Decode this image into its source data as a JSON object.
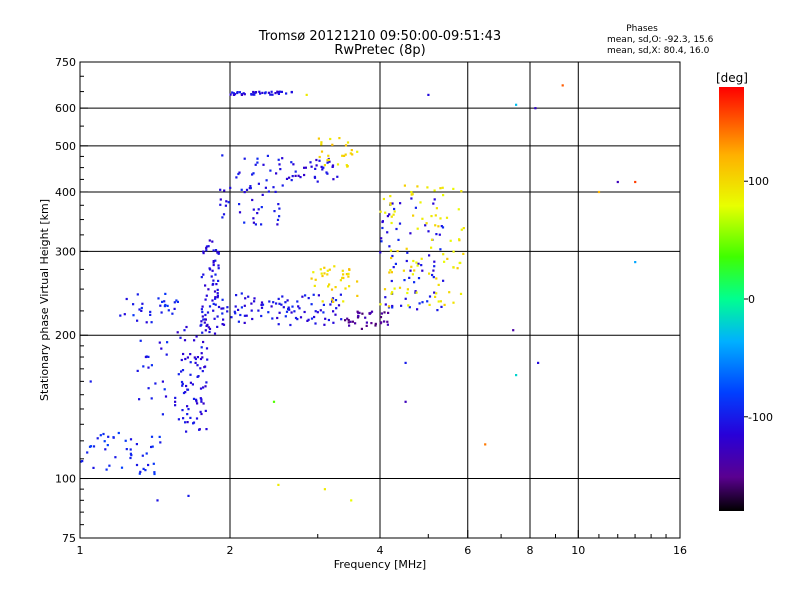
{
  "header": {
    "title": "Tromsø 20121210 09:50:00-09:51:43",
    "subtitle": "RwPretec (8p)"
  },
  "stats": {
    "heading": "Phases",
    "line_o": "mean, sd,O: -92.3, 15.6",
    "line_x": "mean, sd,X:  80.4, 16.0"
  },
  "colorbar": {
    "label": "[deg]",
    "range": [
      -180,
      180
    ],
    "ticks": [
      {
        "value": 100,
        "label": "100"
      },
      {
        "value": 0,
        "label": "0"
      },
      {
        "value": -100,
        "label": "-100"
      }
    ]
  },
  "chart_data": {
    "type": "scatter",
    "title": "Tromsø 20121210 09:50:00-09:51:43",
    "subtitle": "RwPretec (8p)",
    "xlabel": "Frequency [MHz]",
    "ylabel": "Stationary phase Virtual Height [km]",
    "xscale": "log",
    "yscale": "log",
    "xlim": [
      1,
      16
    ],
    "ylim": [
      75,
      750
    ],
    "xticks": [
      {
        "value": 1,
        "label": "1"
      },
      {
        "value": 2,
        "label": "2"
      },
      {
        "value": 4,
        "label": "4"
      },
      {
        "value": 6,
        "label": "6"
      },
      {
        "value": 8,
        "label": "8"
      },
      {
        "value": 10,
        "label": "10"
      },
      {
        "value": 16,
        "label": "16"
      }
    ],
    "yticks": [
      {
        "value": 75,
        "label": "75"
      },
      {
        "value": 100,
        "label": "100"
      },
      {
        "value": 200,
        "label": "200"
      },
      {
        "value": 300,
        "label": "300"
      },
      {
        "value": 400,
        "label": "400"
      },
      {
        "value": 500,
        "label": "500"
      },
      {
        "value": 600,
        "label": "600"
      },
      {
        "value": 750,
        "label": "750"
      }
    ],
    "x_gridlines": [
      2,
      4,
      6,
      8,
      10
    ],
    "y_gridlines": [
      100,
      200,
      300,
      400,
      500,
      600
    ],
    "grid": true,
    "color_scale": "phase (deg), -180 black/purple through blue, cyan, green, yellow to red at 180",
    "traces": [
      {
        "freq_range": [
          1.55,
          1.8
        ],
        "height_range": [
          125,
          210
        ],
        "phase": -110,
        "density": 80
      },
      {
        "freq_range": [
          1.75,
          1.9
        ],
        "height_range": [
          200,
          330
        ],
        "phase": -110,
        "density": 60
      },
      {
        "freq_range": [
          1.3,
          1.5
        ],
        "height_range": [
          135,
          250
        ],
        "phase": -100,
        "density": 30
      },
      {
        "freq_range": [
          1.0,
          1.45
        ],
        "height_range": [
          102,
          125
        ],
        "phase": -95,
        "density": 45
      },
      {
        "freq_range": [
          1.2,
          1.6
        ],
        "height_range": [
          220,
          240
        ],
        "phase": -100,
        "density": 20
      },
      {
        "freq_range": [
          1.8,
          3.4
        ],
        "height_range": [
          210,
          245
        ],
        "phase": -105,
        "density": 110
      },
      {
        "freq_range": [
          3.4,
          4.2
        ],
        "height_range": [
          205,
          225
        ],
        "phase": -145,
        "density": 35
      },
      {
        "freq_range": [
          4.0,
          5.4
        ],
        "height_range": [
          225,
          390
        ],
        "phase": -105,
        "density": 70
      },
      {
        "freq_range": [
          2.9,
          3.6
        ],
        "height_range": [
          235,
          280
        ],
        "phase": 100,
        "density": 35
      },
      {
        "freq_range": [
          4.0,
          5.9
        ],
        "height_range": [
          230,
          420
        ],
        "phase": 95,
        "density": 90
      },
      {
        "freq_range": [
          1.9,
          2.6
        ],
        "height_range": [
          340,
          480
        ],
        "phase": -105,
        "density": 60
      },
      {
        "freq_range": [
          2.6,
          3.3
        ],
        "height_range": [
          420,
          470
        ],
        "phase": -110,
        "density": 35
      },
      {
        "freq_range": [
          3.0,
          3.6
        ],
        "height_range": [
          450,
          520
        ],
        "phase": 100,
        "density": 25
      },
      {
        "freq_range": [
          2.0,
          2.7
        ],
        "height_range": [
          640,
          650
        ],
        "phase": -110,
        "density": 40
      }
    ],
    "scatter_points": [
      {
        "freq": 1.05,
        "height": 160,
        "phase": -100
      },
      {
        "freq": 1.43,
        "height": 90,
        "phase": -105
      },
      {
        "freq": 1.65,
        "height": 92,
        "phase": -100
      },
      {
        "freq": 2.45,
        "height": 145,
        "phase": 40
      },
      {
        "freq": 2.5,
        "height": 97,
        "phase": 90
      },
      {
        "freq": 3.1,
        "height": 95,
        "phase": 90
      },
      {
        "freq": 3.5,
        "height": 90,
        "phase": 80
      },
      {
        "freq": 4.5,
        "height": 145,
        "phase": -130
      },
      {
        "freq": 4.5,
        "height": 175,
        "phase": -100
      },
      {
        "freq": 6.5,
        "height": 118,
        "phase": 140
      },
      {
        "freq": 7.4,
        "height": 205,
        "phase": -140
      },
      {
        "freq": 8.3,
        "height": 175,
        "phase": -110
      },
      {
        "freq": 7.5,
        "height": 165,
        "phase": -20
      },
      {
        "freq": 9.3,
        "height": 670,
        "phase": 150
      },
      {
        "freq": 7.5,
        "height": 610,
        "phase": -30
      },
      {
        "freq": 8.2,
        "height": 600,
        "phase": -120
      },
      {
        "freq": 11.0,
        "height": 400,
        "phase": 120
      },
      {
        "freq": 12.0,
        "height": 420,
        "phase": -130
      },
      {
        "freq": 13.0,
        "height": 420,
        "phase": 160
      },
      {
        "freq": 13.0,
        "height": 285,
        "phase": -40
      },
      {
        "freq": 5.0,
        "height": 640,
        "phase": -110
      },
      {
        "freq": 2.85,
        "height": 640,
        "phase": 90
      }
    ]
  }
}
